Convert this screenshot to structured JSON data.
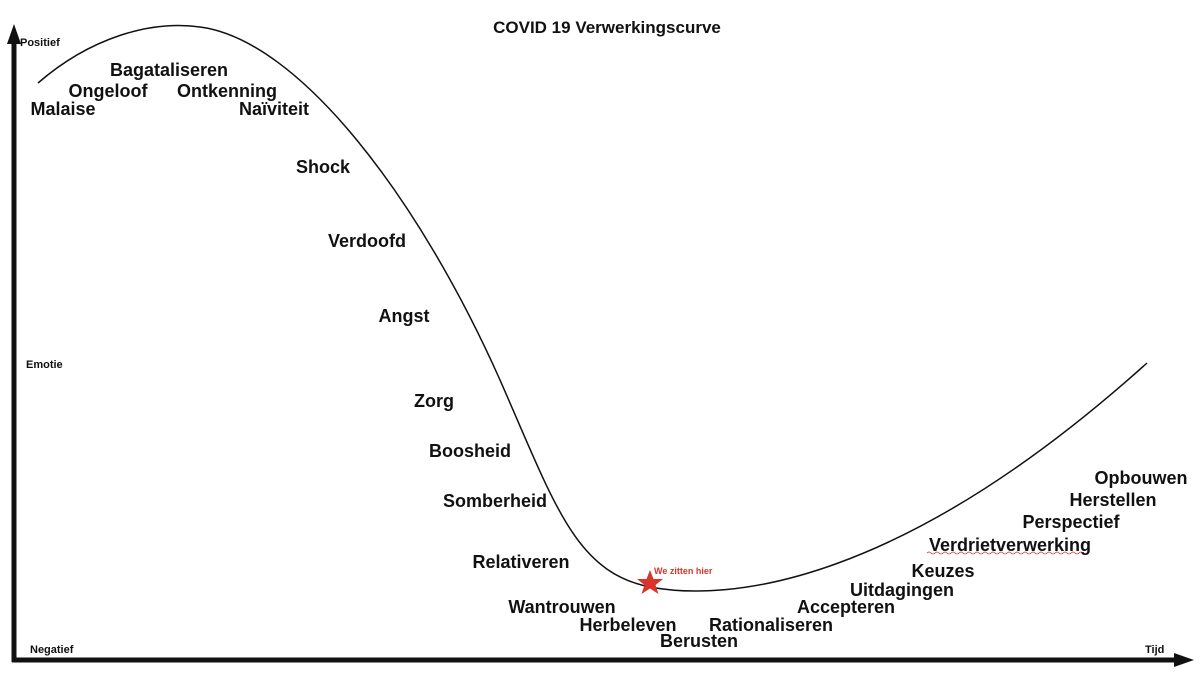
{
  "title": "COVID 19 Verwerkingscurve",
  "axes": {
    "y_top": "Positief",
    "y_middle": "Emotie",
    "y_bottom": "Negatief",
    "x_end": "Tijd"
  },
  "stages": [
    "Bagataliseren",
    "Ongeloof",
    "Ontkenning",
    "Malaise",
    "Naïviteit",
    "Shock",
    "Verdoofd",
    "Angst",
    "Zorg",
    "Boosheid",
    "Somberheid",
    "Relativeren",
    "Wantrouwen",
    "Herbeleven",
    "Berusten",
    "Rationaliseren",
    "Accepteren",
    "Uitdagingen",
    "Keuzes",
    "Verdrietverwerking",
    "Perspectief",
    "Herstellen",
    "Opbouwen"
  ],
  "marker": "We zitten hier"
}
